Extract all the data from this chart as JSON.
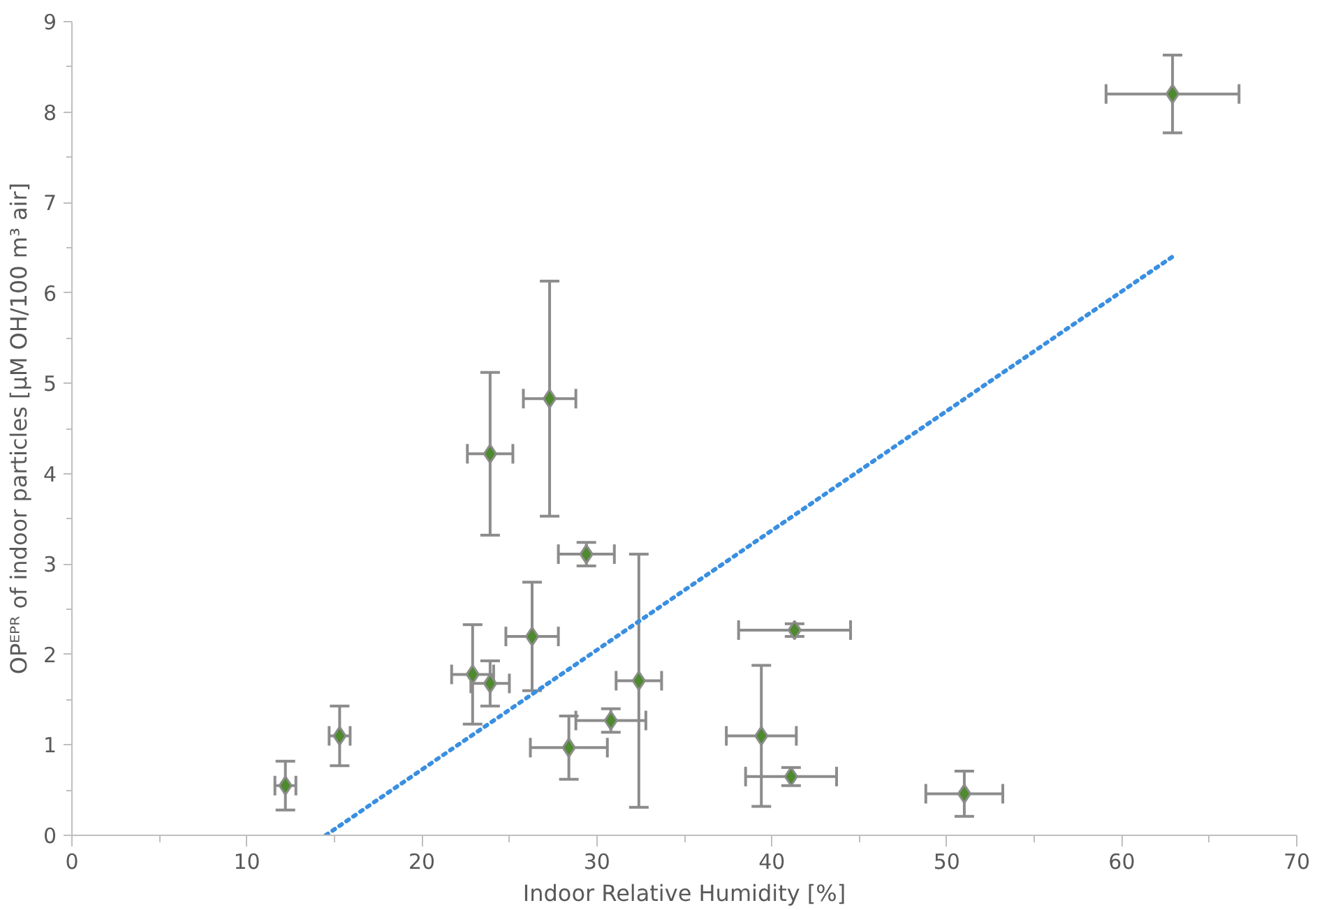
{
  "chart_data": {
    "type": "scatter",
    "xlabel": "Indoor Relative Humidity [%]",
    "ylabel": "OPᴱᴾᴿ of indoor particles [µM OH/100 m³ air]",
    "xlim": [
      0,
      70
    ],
    "xticks": [
      0,
      10,
      20,
      30,
      40,
      50,
      60,
      70
    ],
    "ylim": [
      0,
      9
    ],
    "yticks": [
      0,
      1,
      2,
      3,
      4,
      5,
      6,
      7,
      8,
      9
    ],
    "grid": false,
    "series": [
      {
        "marker": "diamond",
        "color": "#4e8a2e",
        "x": [
          12.2,
          15.3,
          22.9,
          23.9,
          23.9,
          26.3,
          27.3,
          28.4,
          29.4,
          30.8,
          32.4,
          39.4,
          41.3,
          41.1,
          51.0,
          62.9
        ],
        "values": [
          0.55,
          1.1,
          1.78,
          1.68,
          4.22,
          2.2,
          4.83,
          0.97,
          3.11,
          1.27,
          1.71,
          1.1,
          2.27,
          0.65,
          0.46,
          8.2
        ],
        "errors": [
          0.27,
          0.33,
          0.55,
          0.25,
          0.9,
          0.6,
          1.3,
          0.35,
          0.13,
          0.13,
          1.4,
          0.78,
          0.07,
          0.1,
          0.25,
          0.43
        ],
        "xerrors": [
          0.6,
          0.6,
          1.2,
          1.1,
          1.3,
          1.5,
          1.5,
          2.2,
          1.6,
          2.0,
          1.3,
          2.0,
          3.2,
          2.6,
          2.2,
          3.8
        ]
      },
      {
        "type": "line",
        "line_style": "dotted",
        "color": "#3a8fe0",
        "x": [
          14.5,
          62.9
        ],
        "values": [
          0,
          6.4
        ]
      }
    ]
  }
}
